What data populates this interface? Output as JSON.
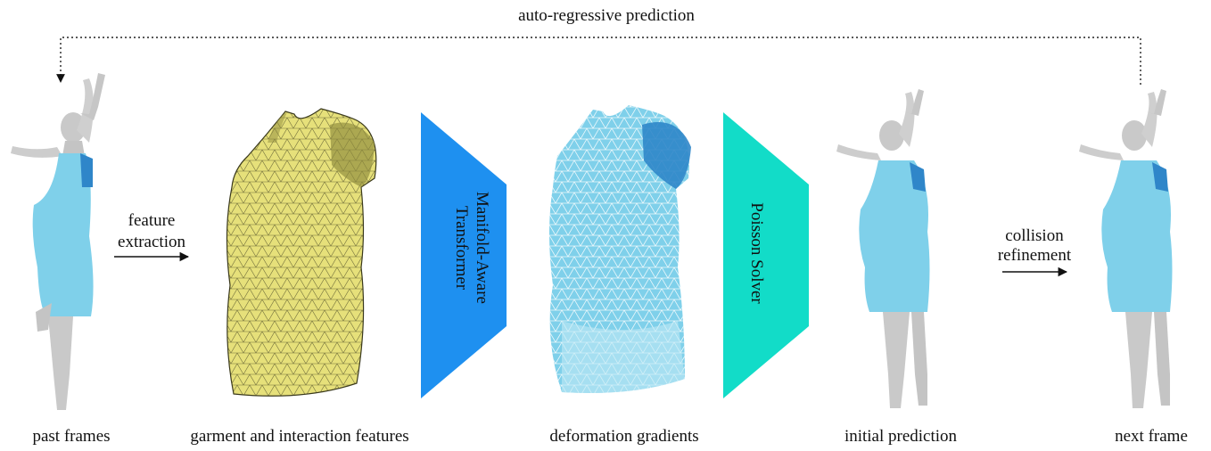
{
  "top_label": "auto-regressive prediction",
  "steps": {
    "past": "past frames",
    "features": "garment and interaction features",
    "gradients": "deformation gradients",
    "initial": "initial prediction",
    "next": "next frame"
  },
  "arrows": {
    "feature_extraction": [
      "feature",
      "extraction"
    ],
    "collision_refinement": [
      "collision",
      "refinement"
    ]
  },
  "blocks": {
    "transformer": [
      "Manifold-Aware",
      "Transformer"
    ],
    "solver": "Poisson Solver"
  },
  "colors": {
    "transformer": "#1e90f0",
    "solver": "#12dcc8",
    "garment_blue": "#7fd0ea",
    "garment_dark": "#2f86c9",
    "body_grey": "#c9c9c9",
    "mesh_yellow": "#e6e07a"
  }
}
